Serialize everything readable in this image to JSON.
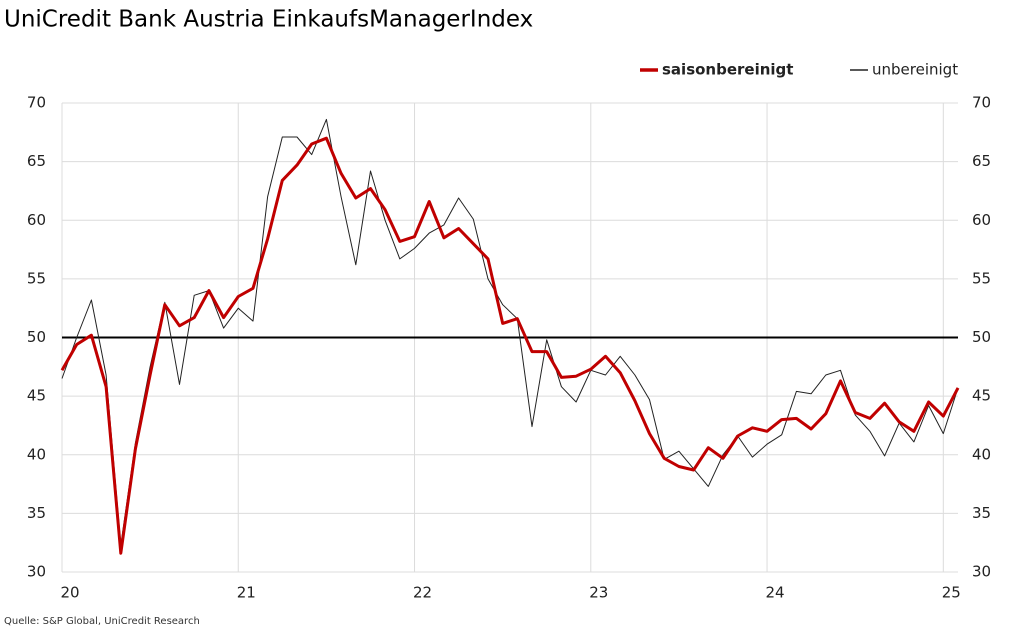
{
  "chart_data": {
    "type": "line",
    "title": "UniCredit Bank Austria EinkaufsManagerIndex",
    "source": "Quelle: S&P Global, UniCredit Research",
    "categories": [
      "20",
      null,
      null,
      null,
      null,
      null,
      null,
      null,
      null,
      null,
      null,
      null,
      "21",
      null,
      null,
      null,
      null,
      null,
      null,
      null,
      null,
      null,
      null,
      null,
      "22",
      null,
      null,
      null,
      null,
      null,
      null,
      null,
      null,
      null,
      null,
      null,
      "23",
      null,
      null,
      null,
      null,
      null,
      null,
      null,
      null,
      null,
      null,
      null,
      "24",
      null,
      null,
      null,
      null,
      null,
      null,
      null,
      null,
      null,
      null,
      null,
      "25",
      null
    ],
    "series": [
      {
        "name": "saisonbereinigt",
        "color": "#c00000",
        "width": 3,
        "values": [
          47.2,
          49.4,
          50.2,
          45.8,
          31.6,
          40.5,
          46.8,
          52.8,
          51.0,
          51.7,
          54.0,
          51.7,
          53.5,
          54.2,
          58.4,
          63.4,
          64.7,
          66.5,
          67.0,
          64.0,
          61.9,
          62.7,
          60.9,
          58.2,
          58.6,
          61.6,
          58.5,
          59.3,
          58.0,
          56.7,
          51.2,
          51.6,
          48.8,
          48.8,
          46.6,
          46.7,
          47.3,
          48.4,
          47.0,
          44.6,
          41.8,
          39.7,
          39.0,
          38.7,
          40.6,
          39.7,
          41.6,
          42.3,
          42.0,
          43.0,
          43.1,
          42.2,
          43.5,
          46.3,
          43.6,
          43.1,
          44.4,
          42.8,
          42.0,
          44.5,
          43.3,
          45.7
        ]
      },
      {
        "name": "unbereinigt",
        "color": "#222222",
        "width": 1,
        "values": [
          46.5,
          50.0,
          53.2,
          46.8,
          32.3,
          41.0,
          47.5,
          53.0,
          46.0,
          53.6,
          54.0,
          50.8,
          52.5,
          51.4,
          62.0,
          67.1,
          67.1,
          65.6,
          68.6,
          62.0,
          56.2,
          64.2,
          60.0,
          56.7,
          57.6,
          58.9,
          59.6,
          61.9,
          60.1,
          55.0,
          52.8,
          51.6,
          42.4,
          49.8,
          45.8,
          44.5,
          47.2,
          46.8,
          48.4,
          46.8,
          44.7,
          39.6,
          40.3,
          38.8,
          37.3,
          40.0,
          41.6,
          39.8,
          40.9,
          41.7,
          45.4,
          45.2,
          46.8,
          47.2,
          43.4,
          42.0,
          39.9,
          42.7,
          41.1,
          44.2,
          41.8,
          45.7
        ]
      }
    ],
    "hline": 50,
    "ylim": [
      30,
      70
    ],
    "yticks": [
      30,
      35,
      40,
      45,
      50,
      55,
      60,
      65,
      70
    ],
    "grid": true,
    "legend": "top-right"
  }
}
